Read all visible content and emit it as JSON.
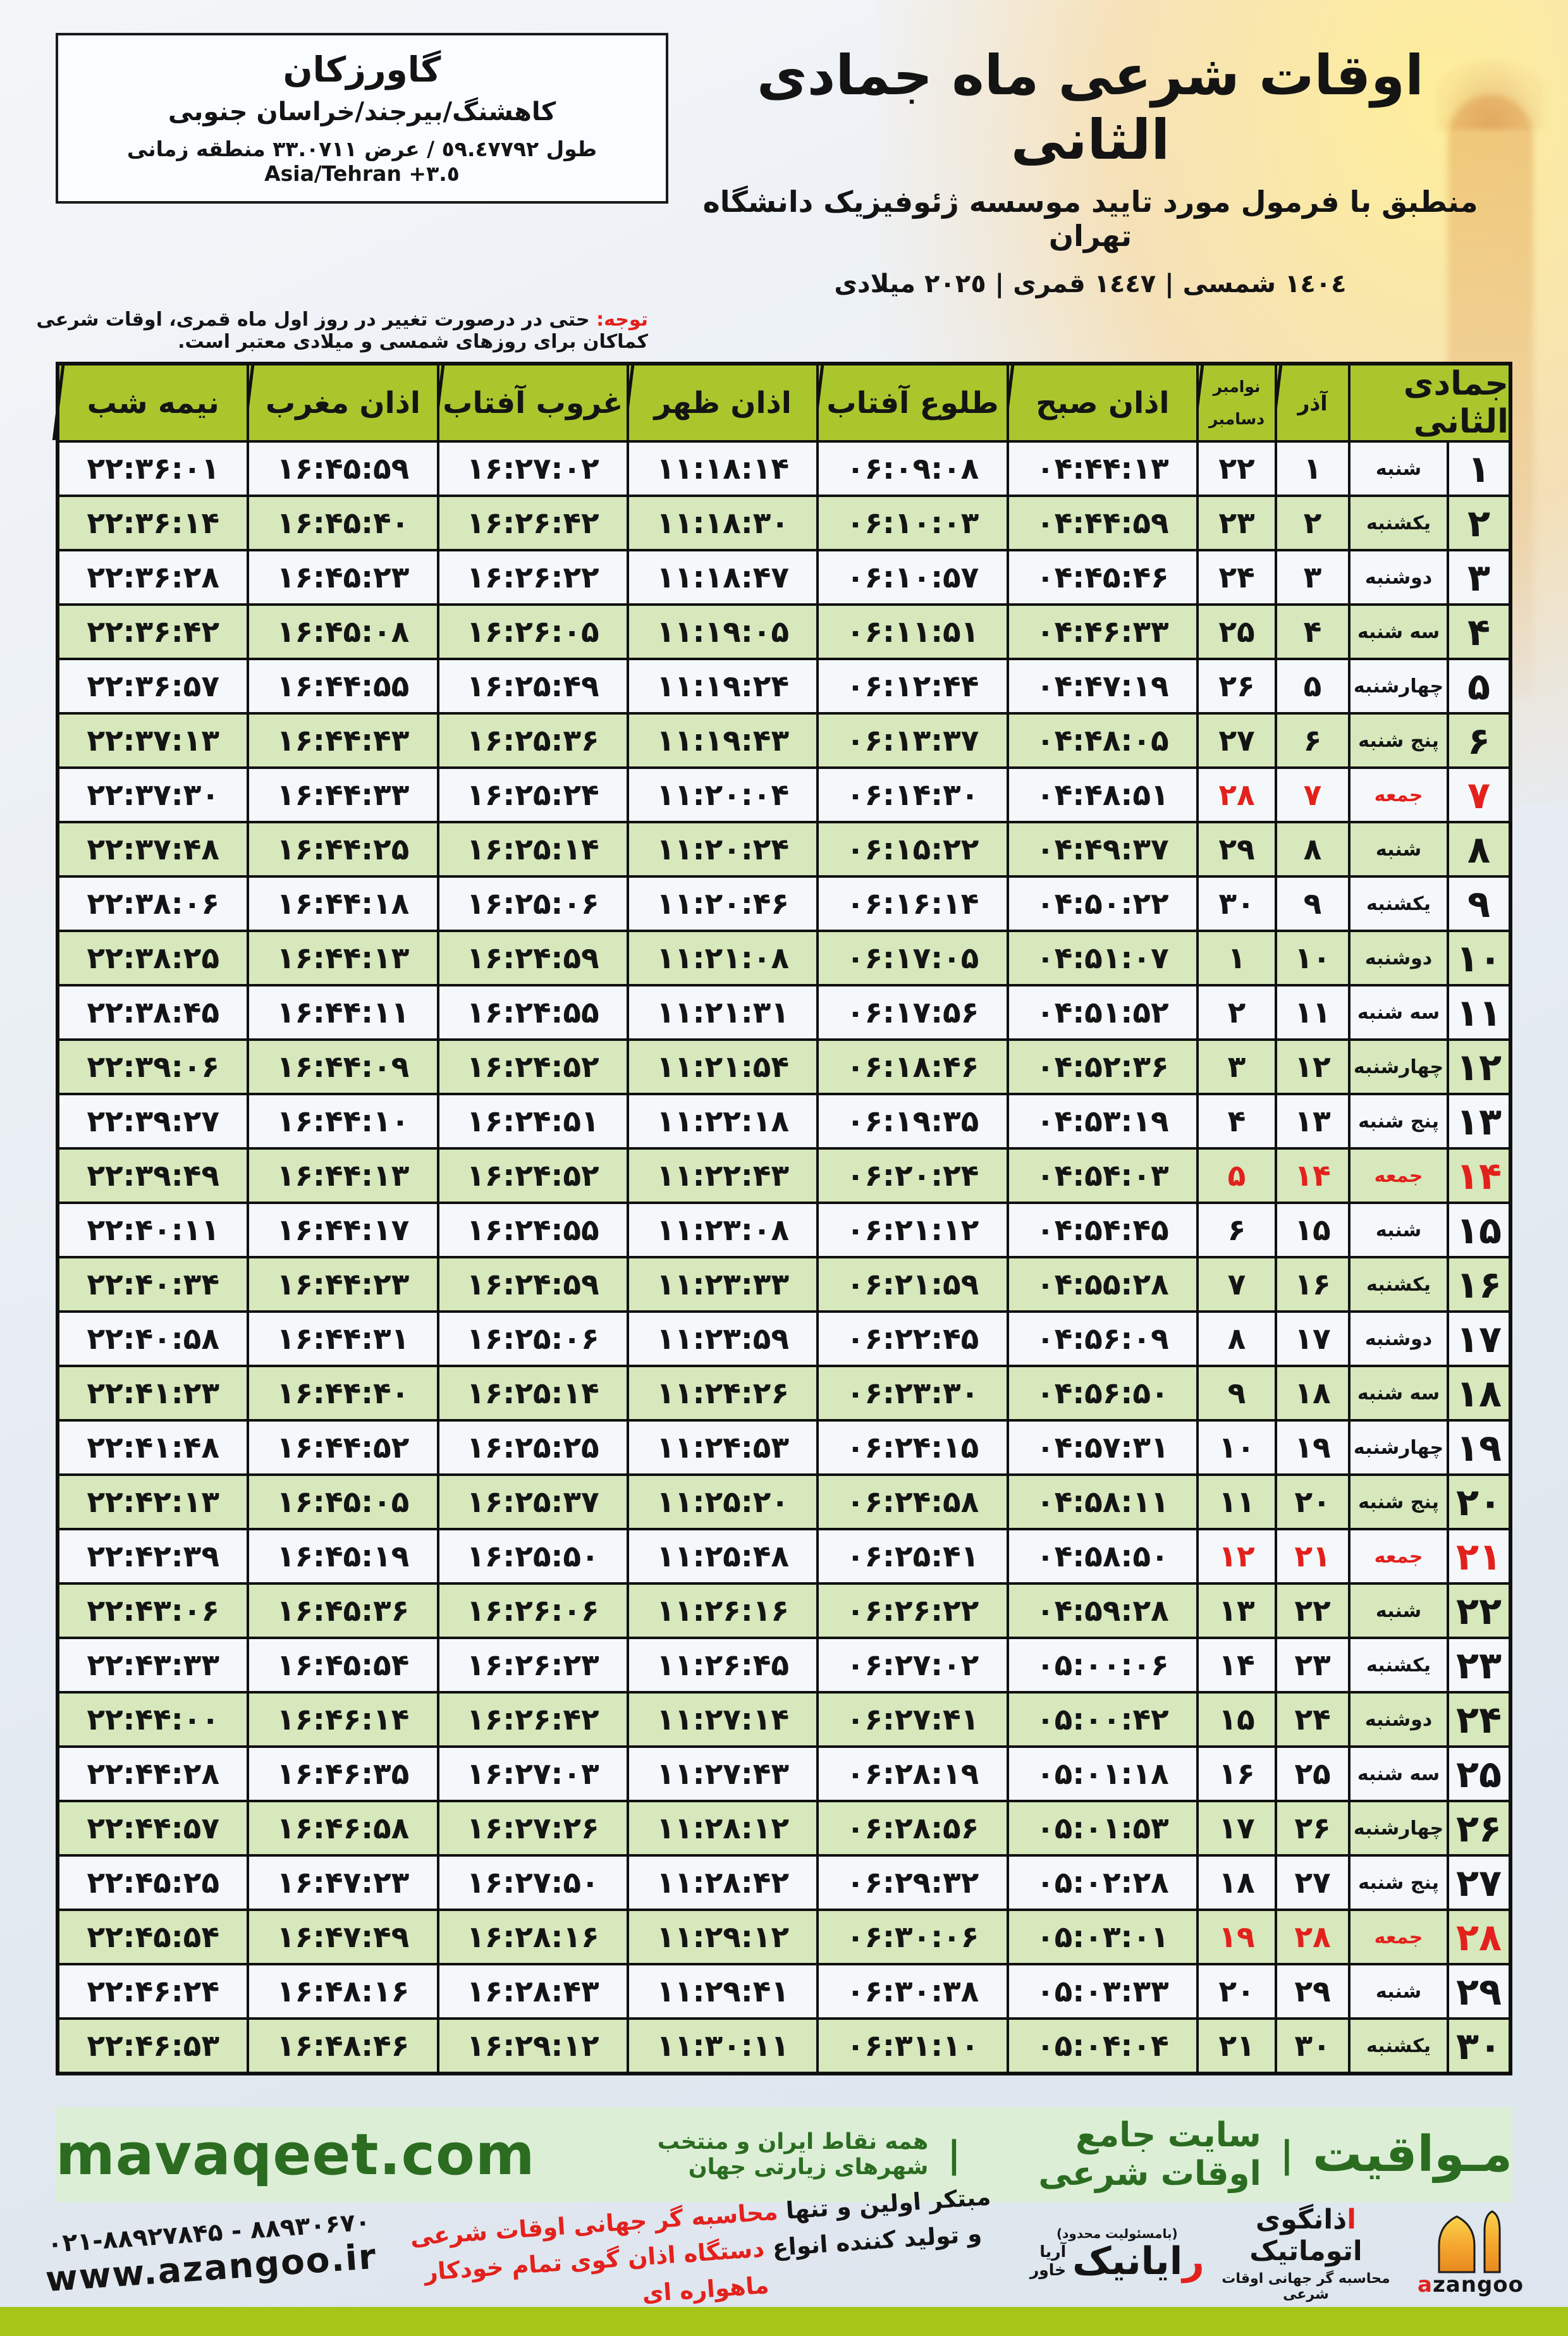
{
  "colors": {
    "header_green": "#a9c72d",
    "row_green": "#d6e8bc",
    "row_white": "#f4f8fb",
    "friday_red": "#e3211c",
    "footer_bg": "#dcefd6",
    "footer_text": "#2b6c21",
    "bottom_bar": "#a6c519"
  },
  "header": {
    "title": "اوقات شرعی ماه جمادی الثانی",
    "subtitle": "منطبق با فرمول مورد تایید موسسه ژئوفیزیک دانشگاه تهران",
    "years": "١٤٠٤ شمسی | ١٤٤٧ قمری | ٢٠٢٥ میلادی",
    "location": {
      "name": "گاورزکان",
      "region": "کاهشنگ/بیرجند/خراسان جنوبی",
      "coords": "طول ٥٩.٤٧٧٩٢ / عرض ٣٣.٠٧١١ منطقه زمانی ‪Asia/Tehran +٣.٥‬"
    },
    "note_label": "توجه:",
    "note_text": " حتی در درصورت تغییر در روز اول ماه قمری، اوقات شرعی کماکان برای روزهای شمسی و میلادی معتبر است."
  },
  "table": {
    "headers": {
      "month": "جمادی الثانی",
      "azar": "آذر",
      "november": "نوامبر",
      "december": "دسامبر",
      "azan_sobh": "اذان صبح",
      "sunrise": "طلوع آفتاب",
      "azan_zohr": "اذان ظهر",
      "sunset": "غروب آفتاب",
      "azan_maghreb": "اذان مغرب",
      "midnight": "نیمه شب"
    },
    "rows": [
      {
        "day": "۱",
        "weekday": "شنبه",
        "azar": "۱",
        "gregorian": "۲۲",
        "friday": false,
        "times": [
          "۰۴:۴۴:۱۳",
          "۰۶:۰۹:۰۸",
          "۱۱:۱۸:۱۴",
          "۱۶:۲۷:۰۲",
          "۱۶:۴۵:۵۹",
          "۲۲:۳۶:۰۱"
        ]
      },
      {
        "day": "۲",
        "weekday": "یکشنبه",
        "azar": "۲",
        "gregorian": "۲۳",
        "friday": false,
        "times": [
          "۰۴:۴۴:۵۹",
          "۰۶:۱۰:۰۳",
          "۱۱:۱۸:۳۰",
          "۱۶:۲۶:۴۲",
          "۱۶:۴۵:۴۰",
          "۲۲:۳۶:۱۴"
        ]
      },
      {
        "day": "۳",
        "weekday": "دوشنبه",
        "azar": "۳",
        "gregorian": "۲۴",
        "friday": false,
        "times": [
          "۰۴:۴۵:۴۶",
          "۰۶:۱۰:۵۷",
          "۱۱:۱۸:۴۷",
          "۱۶:۲۶:۲۲",
          "۱۶:۴۵:۲۳",
          "۲۲:۳۶:۲۸"
        ]
      },
      {
        "day": "۴",
        "weekday": "سه شنبه",
        "azar": "۴",
        "gregorian": "۲۵",
        "friday": false,
        "times": [
          "۰۴:۴۶:۳۳",
          "۰۶:۱۱:۵۱",
          "۱۱:۱۹:۰۵",
          "۱۶:۲۶:۰۵",
          "۱۶:۴۵:۰۸",
          "۲۲:۳۶:۴۲"
        ]
      },
      {
        "day": "۵",
        "weekday": "چهارشنبه",
        "azar": "۵",
        "gregorian": "۲۶",
        "friday": false,
        "times": [
          "۰۴:۴۷:۱۹",
          "۰۶:۱۲:۴۴",
          "۱۱:۱۹:۲۴",
          "۱۶:۲۵:۴۹",
          "۱۶:۴۴:۵۵",
          "۲۲:۳۶:۵۷"
        ]
      },
      {
        "day": "۶",
        "weekday": "پنج شنبه",
        "azar": "۶",
        "gregorian": "۲۷",
        "friday": false,
        "times": [
          "۰۴:۴۸:۰۵",
          "۰۶:۱۳:۳۷",
          "۱۱:۱۹:۴۳",
          "۱۶:۲۵:۳۶",
          "۱۶:۴۴:۴۳",
          "۲۲:۳۷:۱۳"
        ]
      },
      {
        "day": "۷",
        "weekday": "جمعه",
        "azar": "۷",
        "gregorian": "۲۸",
        "friday": true,
        "times": [
          "۰۴:۴۸:۵۱",
          "۰۶:۱۴:۳۰",
          "۱۱:۲۰:۰۴",
          "۱۶:۲۵:۲۴",
          "۱۶:۴۴:۳۳",
          "۲۲:۳۷:۳۰"
        ]
      },
      {
        "day": "۸",
        "weekday": "شنبه",
        "azar": "۸",
        "gregorian": "۲۹",
        "friday": false,
        "times": [
          "۰۴:۴۹:۳۷",
          "۰۶:۱۵:۲۲",
          "۱۱:۲۰:۲۴",
          "۱۶:۲۵:۱۴",
          "۱۶:۴۴:۲۵",
          "۲۲:۳۷:۴۸"
        ]
      },
      {
        "day": "۹",
        "weekday": "یکشنبه",
        "azar": "۹",
        "gregorian": "۳۰",
        "friday": false,
        "times": [
          "۰۴:۵۰:۲۲",
          "۰۶:۱۶:۱۴",
          "۱۱:۲۰:۴۶",
          "۱۶:۲۵:۰۶",
          "۱۶:۴۴:۱۸",
          "۲۲:۳۸:۰۶"
        ]
      },
      {
        "day": "۱۰",
        "weekday": "دوشنبه",
        "azar": "۱۰",
        "gregorian": "۱",
        "friday": false,
        "times": [
          "۰۴:۵۱:۰۷",
          "۰۶:۱۷:۰۵",
          "۱۱:۲۱:۰۸",
          "۱۶:۲۴:۵۹",
          "۱۶:۴۴:۱۳",
          "۲۲:۳۸:۲۵"
        ]
      },
      {
        "day": "۱۱",
        "weekday": "سه شنبه",
        "azar": "۱۱",
        "gregorian": "۲",
        "friday": false,
        "times": [
          "۰۴:۵۱:۵۲",
          "۰۶:۱۷:۵۶",
          "۱۱:۲۱:۳۱",
          "۱۶:۲۴:۵۵",
          "۱۶:۴۴:۱۱",
          "۲۲:۳۸:۴۵"
        ]
      },
      {
        "day": "۱۲",
        "weekday": "چهارشنبه",
        "azar": "۱۲",
        "gregorian": "۳",
        "friday": false,
        "times": [
          "۰۴:۵۲:۳۶",
          "۰۶:۱۸:۴۶",
          "۱۱:۲۱:۵۴",
          "۱۶:۲۴:۵۲",
          "۱۶:۴۴:۰۹",
          "۲۲:۳۹:۰۶"
        ]
      },
      {
        "day": "۱۳",
        "weekday": "پنج شنبه",
        "azar": "۱۳",
        "gregorian": "۴",
        "friday": false,
        "times": [
          "۰۴:۵۳:۱۹",
          "۰۶:۱۹:۳۵",
          "۱۱:۲۲:۱۸",
          "۱۶:۲۴:۵۱",
          "۱۶:۴۴:۱۰",
          "۲۲:۳۹:۲۷"
        ]
      },
      {
        "day": "۱۴",
        "weekday": "جمعه",
        "azar": "۱۴",
        "gregorian": "۵",
        "friday": true,
        "times": [
          "۰۴:۵۴:۰۳",
          "۰۶:۲۰:۲۴",
          "۱۱:۲۲:۴۳",
          "۱۶:۲۴:۵۲",
          "۱۶:۴۴:۱۳",
          "۲۲:۳۹:۴۹"
        ]
      },
      {
        "day": "۱۵",
        "weekday": "شنبه",
        "azar": "۱۵",
        "gregorian": "۶",
        "friday": false,
        "times": [
          "۰۴:۵۴:۴۵",
          "۰۶:۲۱:۱۲",
          "۱۱:۲۳:۰۸",
          "۱۶:۲۴:۵۵",
          "۱۶:۴۴:۱۷",
          "۲۲:۴۰:۱۱"
        ]
      },
      {
        "day": "۱۶",
        "weekday": "یکشنبه",
        "azar": "۱۶",
        "gregorian": "۷",
        "friday": false,
        "times": [
          "۰۴:۵۵:۲۸",
          "۰۶:۲۱:۵۹",
          "۱۱:۲۳:۳۳",
          "۱۶:۲۴:۵۹",
          "۱۶:۴۴:۲۳",
          "۲۲:۴۰:۳۴"
        ]
      },
      {
        "day": "۱۷",
        "weekday": "دوشنبه",
        "azar": "۱۷",
        "gregorian": "۸",
        "friday": false,
        "times": [
          "۰۴:۵۶:۰۹",
          "۰۶:۲۲:۴۵",
          "۱۱:۲۳:۵۹",
          "۱۶:۲۵:۰۶",
          "۱۶:۴۴:۳۱",
          "۲۲:۴۰:۵۸"
        ]
      },
      {
        "day": "۱۸",
        "weekday": "سه شنبه",
        "azar": "۱۸",
        "gregorian": "۹",
        "friday": false,
        "times": [
          "۰۴:۵۶:۵۰",
          "۰۶:۲۳:۳۰",
          "۱۱:۲۴:۲۶",
          "۱۶:۲۵:۱۴",
          "۱۶:۴۴:۴۰",
          "۲۲:۴۱:۲۳"
        ]
      },
      {
        "day": "۱۹",
        "weekday": "چهارشنبه",
        "azar": "۱۹",
        "gregorian": "۱۰",
        "friday": false,
        "times": [
          "۰۴:۵۷:۳۱",
          "۰۶:۲۴:۱۵",
          "۱۱:۲۴:۵۳",
          "۱۶:۲۵:۲۵",
          "۱۶:۴۴:۵۲",
          "۲۲:۴۱:۴۸"
        ]
      },
      {
        "day": "۲۰",
        "weekday": "پنج شنبه",
        "azar": "۲۰",
        "gregorian": "۱۱",
        "friday": false,
        "times": [
          "۰۴:۵۸:۱۱",
          "۰۶:۲۴:۵۸",
          "۱۱:۲۵:۲۰",
          "۱۶:۲۵:۳۷",
          "۱۶:۴۵:۰۵",
          "۲۲:۴۲:۱۳"
        ]
      },
      {
        "day": "۲۱",
        "weekday": "جمعه",
        "azar": "۲۱",
        "gregorian": "۱۲",
        "friday": true,
        "times": [
          "۰۴:۵۸:۵۰",
          "۰۶:۲۵:۴۱",
          "۱۱:۲۵:۴۸",
          "۱۶:۲۵:۵۰",
          "۱۶:۴۵:۱۹",
          "۲۲:۴۲:۳۹"
        ]
      },
      {
        "day": "۲۲",
        "weekday": "شنبه",
        "azar": "۲۲",
        "gregorian": "۱۳",
        "friday": false,
        "times": [
          "۰۴:۵۹:۲۸",
          "۰۶:۲۶:۲۲",
          "۱۱:۲۶:۱۶",
          "۱۶:۲۶:۰۶",
          "۱۶:۴۵:۳۶",
          "۲۲:۴۳:۰۶"
        ]
      },
      {
        "day": "۲۳",
        "weekday": "یکشنبه",
        "azar": "۲۳",
        "gregorian": "۱۴",
        "friday": false,
        "times": [
          "۰۵:۰۰:۰۶",
          "۰۶:۲۷:۰۲",
          "۱۱:۲۶:۴۵",
          "۱۶:۲۶:۲۳",
          "۱۶:۴۵:۵۴",
          "۲۲:۴۳:۳۳"
        ]
      },
      {
        "day": "۲۴",
        "weekday": "دوشنبه",
        "azar": "۲۴",
        "gregorian": "۱۵",
        "friday": false,
        "times": [
          "۰۵:۰۰:۴۲",
          "۰۶:۲۷:۴۱",
          "۱۱:۲۷:۱۴",
          "۱۶:۲۶:۴۲",
          "۱۶:۴۶:۱۴",
          "۲۲:۴۴:۰۰"
        ]
      },
      {
        "day": "۲۵",
        "weekday": "سه شنبه",
        "azar": "۲۵",
        "gregorian": "۱۶",
        "friday": false,
        "times": [
          "۰۵:۰۱:۱۸",
          "۰۶:۲۸:۱۹",
          "۱۱:۲۷:۴۳",
          "۱۶:۲۷:۰۳",
          "۱۶:۴۶:۳۵",
          "۲۲:۴۴:۲۸"
        ]
      },
      {
        "day": "۲۶",
        "weekday": "چهارشنبه",
        "azar": "۲۶",
        "gregorian": "۱۷",
        "friday": false,
        "times": [
          "۰۵:۰۱:۵۳",
          "۰۶:۲۸:۵۶",
          "۱۱:۲۸:۱۲",
          "۱۶:۲۷:۲۶",
          "۱۶:۴۶:۵۸",
          "۲۲:۴۴:۵۷"
        ]
      },
      {
        "day": "۲۷",
        "weekday": "پنج شنبه",
        "azar": "۲۷",
        "gregorian": "۱۸",
        "friday": false,
        "times": [
          "۰۵:۰۲:۲۸",
          "۰۶:۲۹:۳۲",
          "۱۱:۲۸:۴۲",
          "۱۶:۲۷:۵۰",
          "۱۶:۴۷:۲۳",
          "۲۲:۴۵:۲۵"
        ]
      },
      {
        "day": "۲۸",
        "weekday": "جمعه",
        "azar": "۲۸",
        "gregorian": "۱۹",
        "friday": true,
        "times": [
          "۰۵:۰۳:۰۱",
          "۰۶:۳۰:۰۶",
          "۱۱:۲۹:۱۲",
          "۱۶:۲۸:۱۶",
          "۱۶:۴۷:۴۹",
          "۲۲:۴۵:۵۴"
        ]
      },
      {
        "day": "۲۹",
        "weekday": "شنبه",
        "azar": "۲۹",
        "gregorian": "۲۰",
        "friday": false,
        "times": [
          "۰۵:۰۳:۳۳",
          "۰۶:۳۰:۳۸",
          "۱۱:۲۹:۴۱",
          "۱۶:۲۸:۴۳",
          "۱۶:۴۸:۱۶",
          "۲۲:۴۶:۲۴"
        ]
      },
      {
        "day": "۳۰",
        "weekday": "یکشنبه",
        "azar": "۳۰",
        "gregorian": "۲۱",
        "friday": false,
        "times": [
          "۰۵:۰۴:۰۴",
          "۰۶:۳۱:۱۰",
          "۱۱:۳۰:۱۱",
          "۱۶:۲۹:۱۲",
          "۱۶:۴۸:۴۶",
          "۲۲:۴۶:۵۳"
        ]
      }
    ]
  },
  "footer": {
    "brand": "مـواقیت",
    "separator": "|",
    "tagline_main": "سایت جامع اوقات شرعی",
    "tagline_sub": "همه نقاط ایران و منتخب شهرهای زیارتی جهان",
    "domain": "mavaqeet.com"
  },
  "bottom": {
    "azangoo_title_initial": "ا",
    "azangoo_title_rest": "ذانگوی اتوماتیک",
    "azangoo_subtitle": "محاسبه گر جهانی اوقات شرعی",
    "azangoo_word_a": "a",
    "azangoo_word_rest": "zangoo",
    "rayanik_note": "(بامسئولیت محدود)",
    "rayanik_initial": "ر",
    "rayanik_rest": "ایانیک",
    "rayanik_sub1": "آریا",
    "rayanik_sub2": "خاور",
    "line1_black": "مبتکر اولین و تنها ",
    "line1_red": "محاسبه گر جهانی اوقات شرعی",
    "line2_black": "و تولید کننده انواع ",
    "line2_red": "دستگاه اذان گوی تمام خودکار ماهواره ای",
    "phones": "‪۰۲۱-۸۸۹۲۷۸۴۵ - ۸۸۹۳۰۶۷۰‬",
    "website": "www.azangoo.ir"
  }
}
